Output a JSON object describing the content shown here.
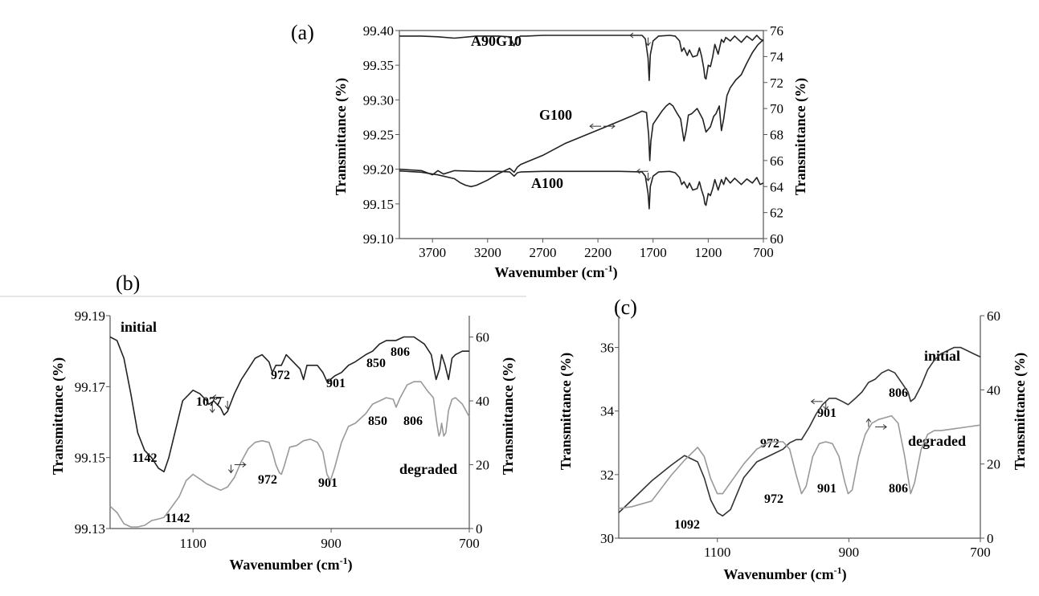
{
  "chart_data": [
    {
      "panel": "(a)",
      "type": "line",
      "xlabel": "Wavenumber (cm-1)",
      "ylabel": "Transmittance (%)",
      "y2label": "Transmittance (%)",
      "xlim": [
        4000,
        700
      ],
      "xticks": [
        "3700",
        "3200",
        "2700",
        "2200",
        "1700",
        "1200",
        "700"
      ],
      "ylim": [
        99.1,
        99.4
      ],
      "yticks": [
        "99.10",
        "99.15",
        "99.20",
        "99.25",
        "99.30",
        "99.35",
        "99.40"
      ],
      "y2lim": [
        60,
        76
      ],
      "y2ticks": [
        "60",
        "62",
        "64",
        "66",
        "68",
        "70",
        "72",
        "74",
        "76"
      ],
      "series": [
        {
          "name": "A90G10",
          "axis": "left",
          "color": "#222222",
          "x": [
            4000,
            3800,
            3650,
            3500,
            3300,
            3100,
            3000,
            2960,
            2930,
            2900,
            2850,
            2700,
            2400,
            2200,
            2000,
            1800,
            1770,
            1745,
            1735,
            1725,
            1700,
            1650,
            1550,
            1500,
            1460,
            1440,
            1420,
            1390,
            1370,
            1340,
            1300,
            1280,
            1260,
            1240,
            1230,
            1220,
            1200,
            1180,
            1160,
            1140,
            1110,
            1080,
            1060,
            1040,
            1000,
            960,
            900,
            850,
            800,
            760,
            730,
            700
          ],
          "y": [
            99.392,
            99.392,
            99.391,
            99.389,
            99.392,
            99.392,
            99.391,
            99.378,
            99.39,
            99.392,
            99.392,
            99.393,
            99.393,
            99.393,
            99.393,
            99.393,
            99.388,
            99.36,
            99.328,
            99.365,
            99.385,
            99.392,
            99.393,
            99.392,
            99.385,
            99.37,
            99.375,
            99.364,
            99.372,
            99.362,
            99.364,
            99.375,
            99.363,
            99.345,
            99.332,
            99.33,
            99.35,
            99.348,
            99.362,
            99.38,
            99.366,
            99.387,
            99.383,
            99.39,
            99.385,
            99.392,
            99.383,
            99.392,
            99.386,
            99.393,
            99.388,
            99.385
          ]
        },
        {
          "name": "G100",
          "axis": "right",
          "color": "#222222",
          "x": [
            4000,
            3800,
            3650,
            3500,
            3450,
            3400,
            3350,
            3300,
            3200,
            3100,
            3000,
            2960,
            2930,
            2900,
            2700,
            2500,
            2300,
            2100,
            1900,
            1800,
            1760,
            1740,
            1730,
            1720,
            1700,
            1660,
            1620,
            1580,
            1550,
            1520,
            1480,
            1450,
            1420,
            1400,
            1380,
            1350,
            1300,
            1250,
            1220,
            1200,
            1180,
            1150,
            1130,
            1100,
            1080,
            1060,
            1030,
            1000,
            950,
            900,
            850,
            800,
            750,
            700
          ],
          "y": [
            65.2,
            65.1,
            64.9,
            64.6,
            64.3,
            64.1,
            64.0,
            64.1,
            64.5,
            65.0,
            65.4,
            65.1,
            65.5,
            65.7,
            66.4,
            67.3,
            68.0,
            68.7,
            69.4,
            69.8,
            69.7,
            68.0,
            66.0,
            67.5,
            68.8,
            69.3,
            69.8,
            70.2,
            70.4,
            70.2,
            69.6,
            69.2,
            67.5,
            68.3,
            69.5,
            69.6,
            70.0,
            69.2,
            68.2,
            68.4,
            68.6,
            69.4,
            69.6,
            70.2,
            68.3,
            69.2,
            71.0,
            71.6,
            72.2,
            72.6,
            73.5,
            74.3,
            74.9,
            75.3
          ]
        },
        {
          "name": "A100",
          "axis": "left",
          "color": "#222222",
          "x": [
            4000,
            3800,
            3700,
            3650,
            3600,
            3500,
            3300,
            3100,
            3000,
            2960,
            2930,
            2900,
            2700,
            2400,
            2200,
            2000,
            1800,
            1770,
            1745,
            1735,
            1725,
            1700,
            1650,
            1550,
            1500,
            1460,
            1440,
            1420,
            1390,
            1370,
            1340,
            1300,
            1280,
            1260,
            1240,
            1230,
            1220,
            1200,
            1180,
            1160,
            1140,
            1110,
            1080,
            1060,
            1040,
            1000,
            960,
            900,
            850,
            800,
            760,
            730,
            700
          ],
          "y": [
            99.2,
            99.198,
            99.192,
            99.198,
            99.193,
            99.198,
            99.197,
            99.197,
            99.196,
            99.19,
            99.195,
            99.196,
            99.197,
            99.197,
            99.197,
            99.197,
            99.196,
            99.19,
            99.165,
            99.143,
            99.175,
            99.19,
            99.196,
            99.197,
            99.195,
            99.188,
            99.178,
            99.182,
            99.173,
            99.18,
            99.17,
            99.172,
            99.182,
            99.17,
            99.16,
            99.15,
            99.148,
            99.165,
            99.162,
            99.172,
            99.185,
            99.17,
            99.185,
            99.178,
            99.188,
            99.18,
            99.187,
            99.178,
            99.186,
            99.18,
            99.188,
            99.178,
            99.18
          ]
        }
      ],
      "annotations": [
        "A90G10",
        "G100",
        "A100"
      ]
    },
    {
      "panel": "(b)",
      "type": "line",
      "xlabel": "Wavenumber (cm-1)",
      "ylabel": "Transmittance (%)",
      "y2label": "Transmittance (%)",
      "xlim": [
        1220,
        700
      ],
      "xticks": [
        "1100",
        "900",
        "700"
      ],
      "ylim": [
        99.13,
        99.19
      ],
      "yticks": [
        "99.13",
        "99.15",
        "99.17",
        "99.19"
      ],
      "y2lim": [
        0,
        66.7
      ],
      "y2ticks": [
        "0",
        "20",
        "40",
        "60"
      ],
      "series": [
        {
          "name": "initial",
          "axis": "left",
          "color": "#222222",
          "x": [
            1220,
            1210,
            1200,
            1190,
            1180,
            1170,
            1160,
            1150,
            1142,
            1135,
            1125,
            1115,
            1100,
            1090,
            1080,
            1077,
            1070,
            1060,
            1055,
            1050,
            1040,
            1030,
            1020,
            1010,
            1000,
            990,
            985,
            980,
            972,
            965,
            955,
            945,
            940,
            935,
            920,
            912,
            905,
            901,
            895,
            885,
            875,
            865,
            850,
            840,
            830,
            820,
            806,
            795,
            780,
            765,
            755,
            748,
            743,
            740,
            735,
            730,
            725,
            720,
            710,
            700
          ],
          "y": [
            99.184,
            99.183,
            99.178,
            99.168,
            99.157,
            99.152,
            99.15,
            99.147,
            99.146,
            99.15,
            99.158,
            99.166,
            99.169,
            99.168,
            99.166,
            99.165,
            99.166,
            99.164,
            99.162,
            99.163,
            99.168,
            99.172,
            99.175,
            99.178,
            99.179,
            99.177,
            99.174,
            99.176,
            99.176,
            99.179,
            99.177,
            99.175,
            99.172,
            99.176,
            99.176,
            99.174,
            99.171,
            99.172,
            99.173,
            99.174,
            99.176,
            99.177,
            99.179,
            99.18,
            99.182,
            99.183,
            99.183,
            99.184,
            99.184,
            99.182,
            99.179,
            99.172,
            99.175,
            99.179,
            99.176,
            99.172,
            99.178,
            99.179,
            99.18,
            99.18
          ]
        },
        {
          "name": "degraded",
          "axis": "right",
          "color": "#999999",
          "x": [
            1220,
            1210,
            1200,
            1190,
            1180,
            1170,
            1160,
            1150,
            1142,
            1135,
            1120,
            1110,
            1100,
            1090,
            1080,
            1070,
            1060,
            1055,
            1050,
            1040,
            1030,
            1020,
            1010,
            1000,
            990,
            985,
            980,
            975,
            972,
            968,
            960,
            950,
            940,
            930,
            920,
            912,
            906,
            901,
            895,
            885,
            875,
            865,
            850,
            840,
            830,
            820,
            810,
            806,
            800,
            790,
            780,
            770,
            760,
            752,
            747,
            744,
            742,
            740,
            737,
            734,
            730,
            725,
            720,
            710,
            700
          ],
          "y": [
            7,
            5,
            1.5,
            0.5,
            0.5,
            1,
            2.5,
            3,
            3.5,
            5.5,
            10,
            15,
            17,
            15.5,
            14,
            13,
            12,
            12.5,
            13,
            16,
            21,
            25,
            27,
            27.5,
            27,
            24,
            20,
            17.5,
            17,
            19.5,
            25.5,
            26,
            27.5,
            28,
            27,
            24,
            17,
            15,
            19,
            27,
            32,
            33,
            36,
            39,
            40,
            41,
            40.5,
            38,
            41,
            45,
            46,
            46,
            43,
            41,
            33,
            29,
            30,
            33,
            29,
            30,
            37,
            40.5,
            41,
            39,
            35
          ]
        }
      ],
      "annotations": [
        "initial",
        "degraded",
        "1142",
        "1077",
        "972",
        "901",
        "850",
        "806",
        "1142",
        "972",
        "901",
        "850",
        "806"
      ]
    },
    {
      "panel": "(c)",
      "type": "line",
      "xlabel": "Wavenumber (cm-1)",
      "ylabel": "Transmittance (%)",
      "y2label": "Transmittance (%)",
      "xlim": [
        1250,
        700
      ],
      "xticks": [
        "1100",
        "900",
        "700"
      ],
      "ylim": [
        30,
        37
      ],
      "yticks": [
        "30",
        "32",
        "34",
        "36"
      ],
      "y2lim": [
        0,
        60
      ],
      "y2ticks": [
        "0",
        "20",
        "40",
        "60"
      ],
      "series": [
        {
          "name": "initial",
          "axis": "left",
          "color": "#333333",
          "x": [
            1250,
            1230,
            1200,
            1170,
            1150,
            1130,
            1120,
            1110,
            1100,
            1092,
            1080,
            1070,
            1060,
            1040,
            1020,
            1000,
            990,
            980,
            972,
            960,
            950,
            940,
            930,
            920,
            910,
            901,
            890,
            880,
            870,
            860,
            850,
            840,
            830,
            820,
            810,
            806,
            800,
            790,
            780,
            770,
            760,
            740,
            730,
            720,
            710,
            700
          ],
          "y": [
            30.8,
            31.2,
            31.8,
            32.3,
            32.6,
            32.4,
            31.9,
            31.2,
            30.8,
            30.7,
            30.9,
            31.4,
            31.9,
            32.4,
            32.6,
            32.8,
            33.0,
            33.1,
            33.1,
            33.5,
            33.9,
            34.2,
            34.4,
            34.4,
            34.3,
            34.2,
            34.4,
            34.6,
            34.9,
            35.0,
            35.2,
            35.3,
            35.2,
            34.9,
            34.6,
            34.3,
            34.4,
            34.8,
            35.3,
            35.6,
            35.8,
            36.0,
            36.0,
            35.9,
            35.8,
            35.7
          ]
        },
        {
          "name": "degraded",
          "axis": "right",
          "color": "#999999",
          "x": [
            1250,
            1230,
            1200,
            1170,
            1150,
            1130,
            1120,
            1110,
            1100,
            1092,
            1080,
            1060,
            1040,
            1020,
            1000,
            990,
            980,
            972,
            965,
            955,
            945,
            935,
            925,
            915,
            906,
            901,
            895,
            885,
            875,
            865,
            855,
            845,
            835,
            825,
            815,
            806,
            800,
            790,
            780,
            770,
            760,
            740,
            720,
            700
          ],
          "y": [
            8,
            8.5,
            10,
            17,
            21,
            24.5,
            22,
            16,
            12,
            12,
            15,
            20,
            24,
            26,
            26,
            24,
            17,
            12,
            14,
            22,
            25.5,
            26,
            25.5,
            22,
            15,
            12,
            13,
            22,
            28,
            31,
            32,
            32.5,
            33,
            31,
            22,
            12,
            15,
            24,
            28,
            29,
            29,
            29.5,
            30,
            30.5
          ]
        }
      ],
      "annotations": [
        "initial",
        "degraded",
        "1092",
        "972",
        "972",
        "901",
        "901",
        "806",
        "806"
      ]
    }
  ],
  "labels": {
    "a": {
      "panel": "(a)",
      "a90g10": "A90G10",
      "g100": "G100",
      "a100": "A100",
      "xlabel_main": "Wavenumber (cm",
      "xlabel_sup": "-1",
      "xlabel_end": ")",
      "ylabel": "Transmittance (%)",
      "y2label": "Transmittance (%)"
    },
    "b": {
      "panel": "(b)",
      "initial": "initial",
      "degraded": "degraded",
      "p1142a": "1142",
      "p1077": "1077",
      "p972a": "972",
      "p901a": "901",
      "p850a": "850",
      "p806a": "806",
      "p1142b": "1142",
      "p972b": "972",
      "p901b": "901",
      "p850b": "850",
      "p806b": "806",
      "xlabel_main": "Wavenumber (cm",
      "xlabel_sup": "-1",
      "xlabel_end": ")",
      "ylabel": "Transmittance (%)",
      "y2label": "Transmittance (%)"
    },
    "c": {
      "panel": "(c)",
      "initial": "initial",
      "degraded": "degraded",
      "p1092": "1092",
      "p972a": "972",
      "p972b": "972",
      "p901a": "901",
      "p901b": "901",
      "p806a": "806",
      "p806b": "806",
      "xlabel_main": "Wavenumber (cm",
      "xlabel_sup": "-1",
      "xlabel_end": ")",
      "ylabel": "Transmittance (%)",
      "y2label": "Transmittance (%)"
    }
  }
}
